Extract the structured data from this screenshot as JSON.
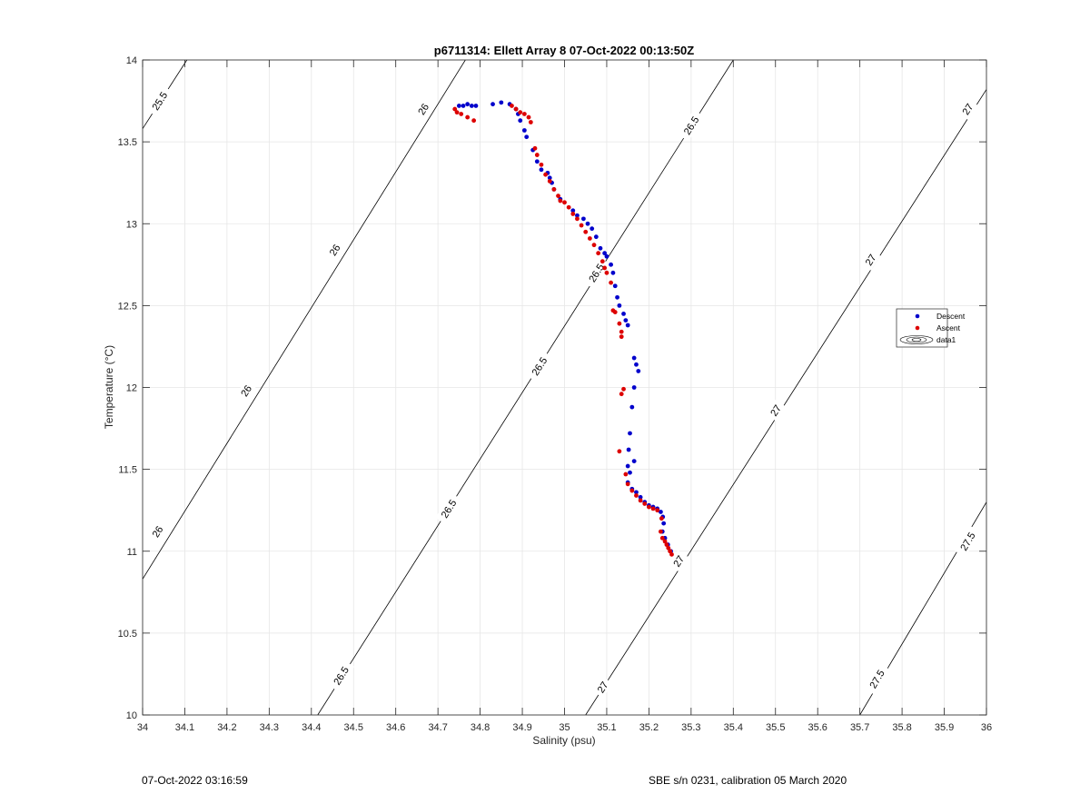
{
  "chart_data": {
    "type": "scatter",
    "title": "p6711314: Ellett Array 8 07-Oct-2022 00:13:50Z",
    "xlabel": "Salinity (psu)",
    "ylabel": "Temperature (°C)",
    "xlim": [
      34,
      36
    ],
    "ylim": [
      10,
      14
    ],
    "xticks": [
      34,
      34.1,
      34.2,
      34.3,
      34.4,
      34.5,
      34.6,
      34.7,
      34.8,
      34.9,
      35,
      35.1,
      35.2,
      35.3,
      35.4,
      35.5,
      35.6,
      35.7,
      35.8,
      35.9,
      36
    ],
    "xtick_labels": [
      "34",
      "34.1",
      "34.2",
      "34.3",
      "34.4",
      "34.5",
      "34.6",
      "34.7",
      "34.8",
      "34.9",
      "35",
      "35.1",
      "35.2",
      "35.3",
      "35.4",
      "35.5",
      "35.6",
      "35.7",
      "35.8",
      "35.9",
      "36"
    ],
    "yticks": [
      10,
      10.5,
      11,
      11.5,
      12,
      12.5,
      13,
      13.5,
      14
    ],
    "ytick_labels": [
      "10",
      "10.5",
      "11",
      "11.5",
      "12",
      "12.5",
      "13",
      "13.5",
      "14"
    ],
    "grid": true,
    "legend": {
      "placement": "right",
      "entries": [
        {
          "label": "Descent",
          "color": "#0000cc"
        },
        {
          "label": "Ascent",
          "color": "#dd0000"
        },
        {
          "label": "data1",
          "color": "#000000"
        }
      ]
    },
    "series": [
      {
        "name": "Descent",
        "color": "#0000cc",
        "points": [
          [
            34.75,
            13.72
          ],
          [
            34.76,
            13.72
          ],
          [
            34.77,
            13.73
          ],
          [
            34.78,
            13.72
          ],
          [
            34.79,
            13.72
          ],
          [
            34.83,
            13.73
          ],
          [
            34.85,
            13.74
          ],
          [
            34.87,
            13.73
          ],
          [
            34.885,
            13.7
          ],
          [
            34.89,
            13.67
          ],
          [
            34.895,
            13.63
          ],
          [
            34.905,
            13.57
          ],
          [
            34.91,
            13.53
          ],
          [
            34.925,
            13.45
          ],
          [
            34.935,
            13.38
          ],
          [
            34.945,
            13.33
          ],
          [
            34.96,
            13.31
          ],
          [
            34.965,
            13.28
          ],
          [
            34.97,
            13.25
          ],
          [
            34.975,
            13.21
          ],
          [
            34.99,
            13.15
          ],
          [
            35.02,
            13.08
          ],
          [
            35.03,
            13.05
          ],
          [
            35.045,
            13.03
          ],
          [
            35.055,
            13.0
          ],
          [
            35.065,
            12.97
          ],
          [
            35.075,
            12.92
          ],
          [
            35.085,
            12.85
          ],
          [
            35.095,
            12.82
          ],
          [
            35.1,
            12.8
          ],
          [
            35.11,
            12.75
          ],
          [
            35.115,
            12.7
          ],
          [
            35.12,
            12.62
          ],
          [
            35.125,
            12.55
          ],
          [
            35.13,
            12.5
          ],
          [
            35.14,
            12.45
          ],
          [
            35.145,
            12.41
          ],
          [
            35.15,
            12.38
          ],
          [
            35.165,
            12.18
          ],
          [
            35.17,
            12.14
          ],
          [
            35.175,
            12.1
          ],
          [
            35.165,
            12.0
          ],
          [
            35.16,
            11.88
          ],
          [
            35.155,
            11.72
          ],
          [
            35.152,
            11.62
          ],
          [
            35.15,
            11.52
          ],
          [
            35.155,
            11.48
          ],
          [
            35.165,
            11.55
          ],
          [
            35.15,
            11.42
          ],
          [
            35.16,
            11.38
          ],
          [
            35.17,
            11.36
          ],
          [
            35.18,
            11.33
          ],
          [
            35.19,
            11.3
          ],
          [
            35.2,
            11.28
          ],
          [
            35.21,
            11.27
          ],
          [
            35.22,
            11.26
          ],
          [
            35.228,
            11.24
          ],
          [
            35.233,
            11.21
          ],
          [
            35.235,
            11.17
          ],
          [
            35.232,
            11.12
          ],
          [
            35.238,
            11.08
          ],
          [
            35.245,
            11.04
          ],
          [
            35.252,
            11.0
          ]
        ]
      },
      {
        "name": "Ascent",
        "color": "#dd0000",
        "points": [
          [
            34.74,
            13.7
          ],
          [
            34.745,
            13.68
          ],
          [
            34.755,
            13.67
          ],
          [
            34.77,
            13.65
          ],
          [
            34.785,
            13.63
          ],
          [
            34.875,
            13.72
          ],
          [
            34.885,
            13.7
          ],
          [
            34.895,
            13.68
          ],
          [
            34.905,
            13.67
          ],
          [
            34.915,
            13.65
          ],
          [
            34.92,
            13.62
          ],
          [
            34.93,
            13.46
          ],
          [
            34.935,
            13.42
          ],
          [
            34.945,
            13.36
          ],
          [
            34.955,
            13.3
          ],
          [
            34.965,
            13.26
          ],
          [
            34.975,
            13.21
          ],
          [
            34.985,
            13.17
          ],
          [
            34.99,
            13.14
          ],
          [
            35.0,
            13.13
          ],
          [
            35.01,
            13.1
          ],
          [
            35.02,
            13.06
          ],
          [
            35.03,
            13.03
          ],
          [
            35.04,
            12.99
          ],
          [
            35.05,
            12.95
          ],
          [
            35.06,
            12.91
          ],
          [
            35.07,
            12.87
          ],
          [
            35.08,
            12.82
          ],
          [
            35.09,
            12.77
          ],
          [
            35.095,
            12.73
          ],
          [
            35.1,
            12.7
          ],
          [
            35.11,
            12.64
          ],
          [
            35.115,
            12.47
          ],
          [
            35.12,
            12.46
          ],
          [
            35.13,
            12.39
          ],
          [
            35.135,
            12.34
          ],
          [
            35.135,
            12.31
          ],
          [
            35.14,
            11.99
          ],
          [
            35.135,
            11.96
          ],
          [
            35.13,
            11.61
          ],
          [
            35.145,
            11.47
          ],
          [
            35.15,
            11.41
          ],
          [
            35.16,
            11.37
          ],
          [
            35.17,
            11.34
          ],
          [
            35.18,
            11.31
          ],
          [
            35.19,
            11.29
          ],
          [
            35.2,
            11.27
          ],
          [
            35.21,
            11.26
          ],
          [
            35.22,
            11.25
          ],
          [
            35.23,
            11.2
          ],
          [
            35.228,
            11.12
          ],
          [
            35.232,
            11.08
          ],
          [
            35.238,
            11.06
          ],
          [
            35.242,
            11.04
          ],
          [
            35.246,
            11.02
          ],
          [
            35.25,
            11.0
          ],
          [
            35.254,
            10.98
          ]
        ]
      }
    ],
    "contours": [
      {
        "level": "25.5",
        "from": [
          34.0,
          13.58
        ],
        "to": [
          34.105,
          14.0
        ],
        "labels": [
          [
            34.04,
            13.75
          ]
        ]
      },
      {
        "level": "26",
        "from": [
          34.0,
          10.83
        ],
        "to": [
          34.765,
          14.0
        ],
        "labels": [
          [
            34.035,
            11.12
          ],
          [
            34.245,
            11.98
          ],
          [
            34.455,
            12.84
          ],
          [
            34.665,
            13.7
          ]
        ]
      },
      {
        "level": "26.5",
        "from": [
          34.415,
          10.0
        ],
        "to": [
          35.4,
          14.0
        ],
        "labels": [
          [
            34.47,
            10.24
          ],
          [
            34.725,
            11.26
          ],
          [
            34.94,
            12.13
          ],
          [
            35.075,
            12.7
          ],
          [
            35.3,
            13.6
          ]
        ]
      },
      {
        "level": "27",
        "from": [
          35.05,
          10.0
        ],
        "to": [
          36.0,
          13.82
        ],
        "labels": [
          [
            35.09,
            10.17
          ],
          [
            35.27,
            10.94
          ],
          [
            35.5,
            11.86
          ],
          [
            35.725,
            12.78
          ],
          [
            35.955,
            13.7
          ]
        ]
      },
      {
        "level": "27.5",
        "from": [
          35.7,
          10.0
        ],
        "to": [
          36.0,
          11.3
        ],
        "labels": [
          [
            35.74,
            10.22
          ],
          [
            35.955,
            11.06
          ]
        ]
      }
    ]
  },
  "footer": {
    "left": "07-Oct-2022 03:16:59",
    "right": "SBE s/n 0231, calibration 05 March 2020"
  }
}
